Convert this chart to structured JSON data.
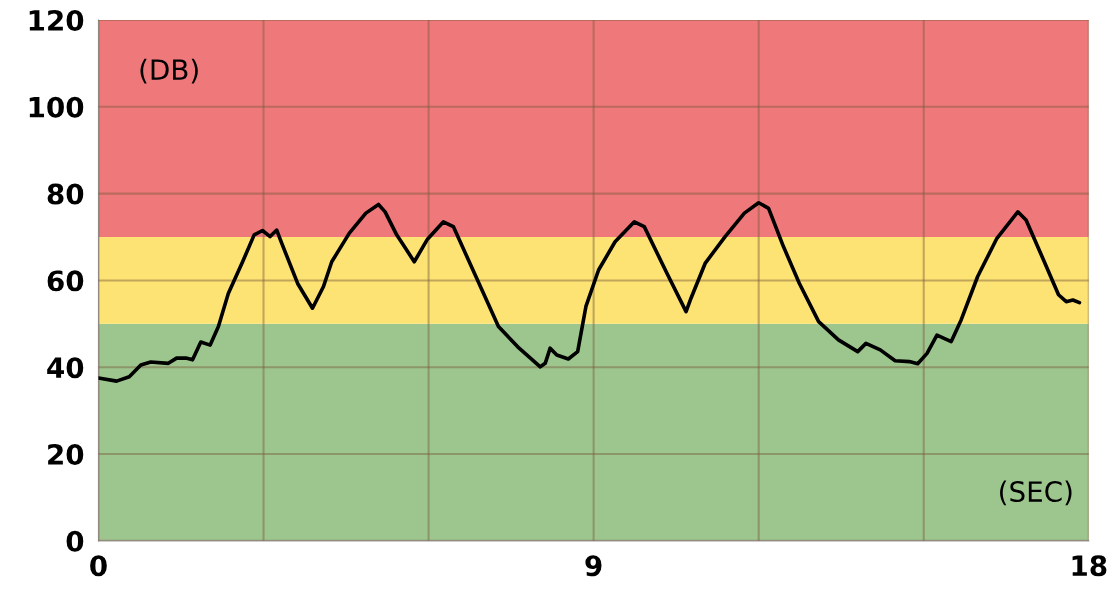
{
  "chart_data": {
    "type": "line",
    "x": [
      0,
      0.33,
      0.56,
      0.77,
      0.95,
      1.27,
      1.42,
      1.59,
      1.71,
      1.86,
      2.03,
      2.18,
      2.36,
      2.62,
      2.83,
      2.98,
      3.12,
      3.24,
      3.33,
      3.62,
      3.89,
      4.09,
      4.24,
      4.56,
      4.86,
      5.09,
      5.21,
      5.42,
      5.56,
      5.74,
      5.98,
      6.27,
      6.45,
      6.86,
      7.27,
      7.62,
      8.03,
      8.12,
      8.21,
      8.33,
      8.54,
      8.71,
      8.86,
      9.09,
      9.39,
      9.74,
      9.92,
      10.33,
      10.68,
      10.77,
      11.03,
      11.39,
      11.74,
      12.0,
      12.18,
      12.45,
      12.74,
      13.09,
      13.45,
      13.8,
      13.95,
      14.21,
      14.48,
      14.74,
      14.89,
      15.06,
      15.24,
      15.5,
      15.68,
      15.98,
      16.33,
      16.71,
      16.86,
      17.15,
      17.45,
      17.59,
      17.71,
      17.83
    ],
    "series": [
      {
        "color": "#000000",
        "values": [
          37.5,
          36.8,
          37.8,
          40.5,
          41.2,
          40.9,
          42.1,
          42.1,
          41.7,
          45.8,
          45.1,
          49.4,
          57.0,
          64.3,
          70.5,
          71.5,
          70.1,
          71.6,
          68.6,
          59.3,
          53.6,
          58.6,
          64.3,
          70.9,
          75.5,
          77.5,
          75.8,
          70.5,
          67.8,
          64.3,
          69.5,
          73.5,
          72.4,
          60.9,
          49.4,
          44.7,
          40.1,
          40.9,
          44.4,
          42.8,
          41.9,
          43.6,
          54.0,
          62.4,
          68.9,
          73.5,
          72.4,
          61.7,
          52.8,
          55.9,
          64.0,
          70.1,
          75.5,
          77.9,
          76.6,
          67.8,
          59.3,
          50.5,
          46.3,
          43.6,
          45.5,
          44.0,
          41.5,
          41.3,
          40.8,
          43.2,
          47.4,
          45.9,
          50.9,
          60.9,
          69.7,
          75.8,
          73.9,
          65.5,
          56.7,
          55.1,
          55.5,
          54.9
        ]
      }
    ],
    "xlim": [
      0,
      18
    ],
    "xticks": [
      0,
      {
        "value": 3,
        "label": null
      },
      {
        "value": 6,
        "label": null
      },
      9,
      {
        "value": 12,
        "label": null
      },
      {
        "value": 15,
        "label": null
      },
      18
    ],
    "ylim": [
      0,
      120
    ],
    "yticks": [
      0,
      20,
      40,
      60,
      80,
      100,
      120
    ],
    "grid": true,
    "legend": false,
    "marker": "none",
    "line_style": "solid",
    "bands": [
      {
        "axis": "y",
        "from": 0,
        "to": 50,
        "color": "#9dc68f"
      },
      {
        "axis": "y",
        "from": 50,
        "to": 70,
        "color": "#fce373"
      },
      {
        "axis": "y",
        "from": 70,
        "to": 120,
        "color": "#ef787b"
      }
    ],
    "annotations": [
      "(DB)",
      "(SEC)"
    ]
  }
}
